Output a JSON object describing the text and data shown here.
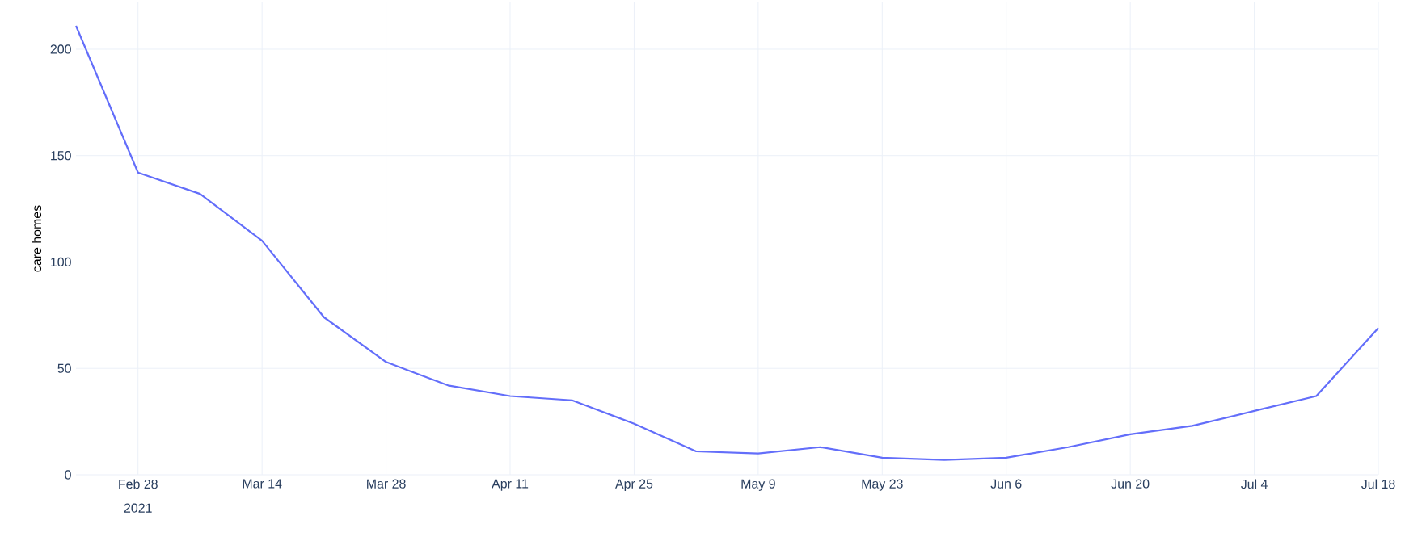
{
  "chart_data": {
    "type": "line",
    "ylabel": "care homes",
    "x": [
      "2021-02-21",
      "2021-02-28",
      "2021-03-07",
      "2021-03-14",
      "2021-03-21",
      "2021-03-28",
      "2021-04-04",
      "2021-04-11",
      "2021-04-18",
      "2021-04-25",
      "2021-05-02",
      "2021-05-09",
      "2021-05-16",
      "2021-05-23",
      "2021-05-30",
      "2021-06-06",
      "2021-06-13",
      "2021-06-20",
      "2021-06-27",
      "2021-07-04",
      "2021-07-11",
      "2021-07-18"
    ],
    "series": [
      {
        "color": "#636efa",
        "values": [
          211,
          142,
          132,
          110,
          74,
          53,
          42,
          37,
          35,
          24,
          11,
          10,
          13,
          8,
          7,
          8,
          13,
          19,
          23,
          30,
          37,
          69
        ]
      }
    ],
    "xlim": [
      "2021-02-21",
      "2021-07-18"
    ],
    "xticks": [
      {
        "value": "2021-02-28",
        "label": "Feb 28"
      },
      {
        "value": "2021-03-14",
        "label": "Mar 14"
      },
      {
        "value": "2021-03-28",
        "label": "Mar 28"
      },
      {
        "value": "2021-04-11",
        "label": "Apr 11"
      },
      {
        "value": "2021-04-25",
        "label": "Apr 25"
      },
      {
        "value": "2021-05-09",
        "label": "May 9"
      },
      {
        "value": "2021-05-23",
        "label": "May 23"
      },
      {
        "value": "2021-06-06",
        "label": "Jun 6"
      },
      {
        "value": "2021-06-20",
        "label": "Jun 20"
      },
      {
        "value": "2021-07-04",
        "label": "Jul 4"
      },
      {
        "value": "2021-07-18",
        "label": "Jul 18"
      }
    ],
    "ylim": [
      0,
      222
    ],
    "yticks": [
      0,
      50,
      100,
      150,
      200
    ],
    "annotations": [
      "2021"
    ],
    "grid": true,
    "marker": "none",
    "line_style": "solid"
  }
}
